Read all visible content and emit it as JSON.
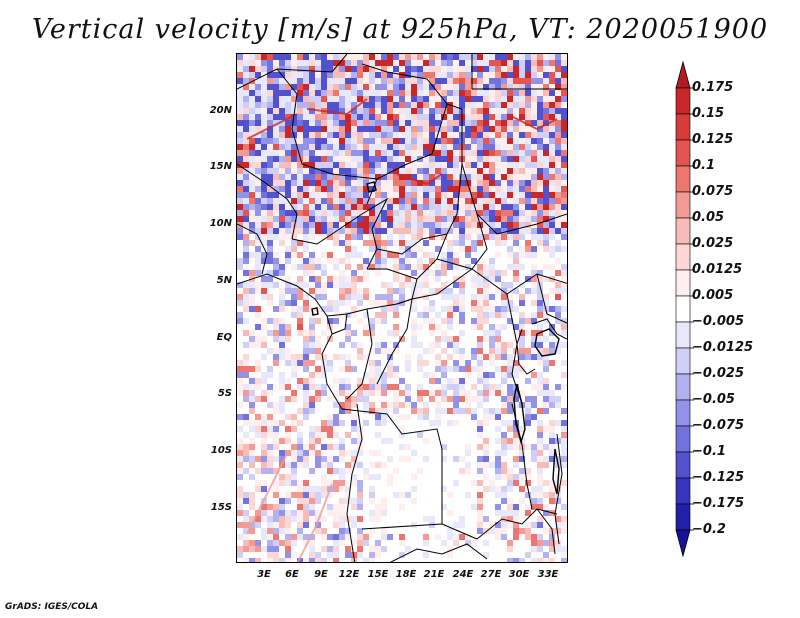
{
  "title": "Vertical velocity [m/s] at 925hPa, VT: 2020051900",
  "credit": "GrADS: IGES/COLA",
  "map": {
    "projection": "lat-lon",
    "lon_range_deg": [
      0,
      35
    ],
    "lat_range_deg": [
      -21,
      25
    ],
    "variable": "vertical velocity",
    "units": "m/s",
    "level": "925hPa",
    "valid_time": "2020051900"
  },
  "lat_ticks": [
    "20N",
    "15N",
    "10N",
    "5N",
    "EQ",
    "5S",
    "10S",
    "15S"
  ],
  "lon_ticks": [
    "3E",
    "6E",
    "9E",
    "12E",
    "15E",
    "18E",
    "21E",
    "24E",
    "27E",
    "30E",
    "33E"
  ],
  "colorbar": {
    "labels": [
      "0.175",
      "0.15",
      "0.125",
      "0.1",
      "0.075",
      "0.05",
      "0.025",
      "0.0125",
      "0.005",
      "−0.005",
      "−0.0125",
      "−0.025",
      "−0.05",
      "−0.075",
      "−0.1",
      "−0.125",
      "−0.175",
      "−0.2"
    ],
    "colors": [
      "#b31b20",
      "#c8282a",
      "#d83c38",
      "#e35550",
      "#ec7770",
      "#f39a94",
      "#f8bcb8",
      "#fbd8d6",
      "#feeeee",
      "#ffffff",
      "#e8e8fb",
      "#cfcff7",
      "#b2b2f1",
      "#9292e8",
      "#7272dd",
      "#5252cf",
      "#3535c0",
      "#2020aa",
      "#13139a"
    ]
  }
}
